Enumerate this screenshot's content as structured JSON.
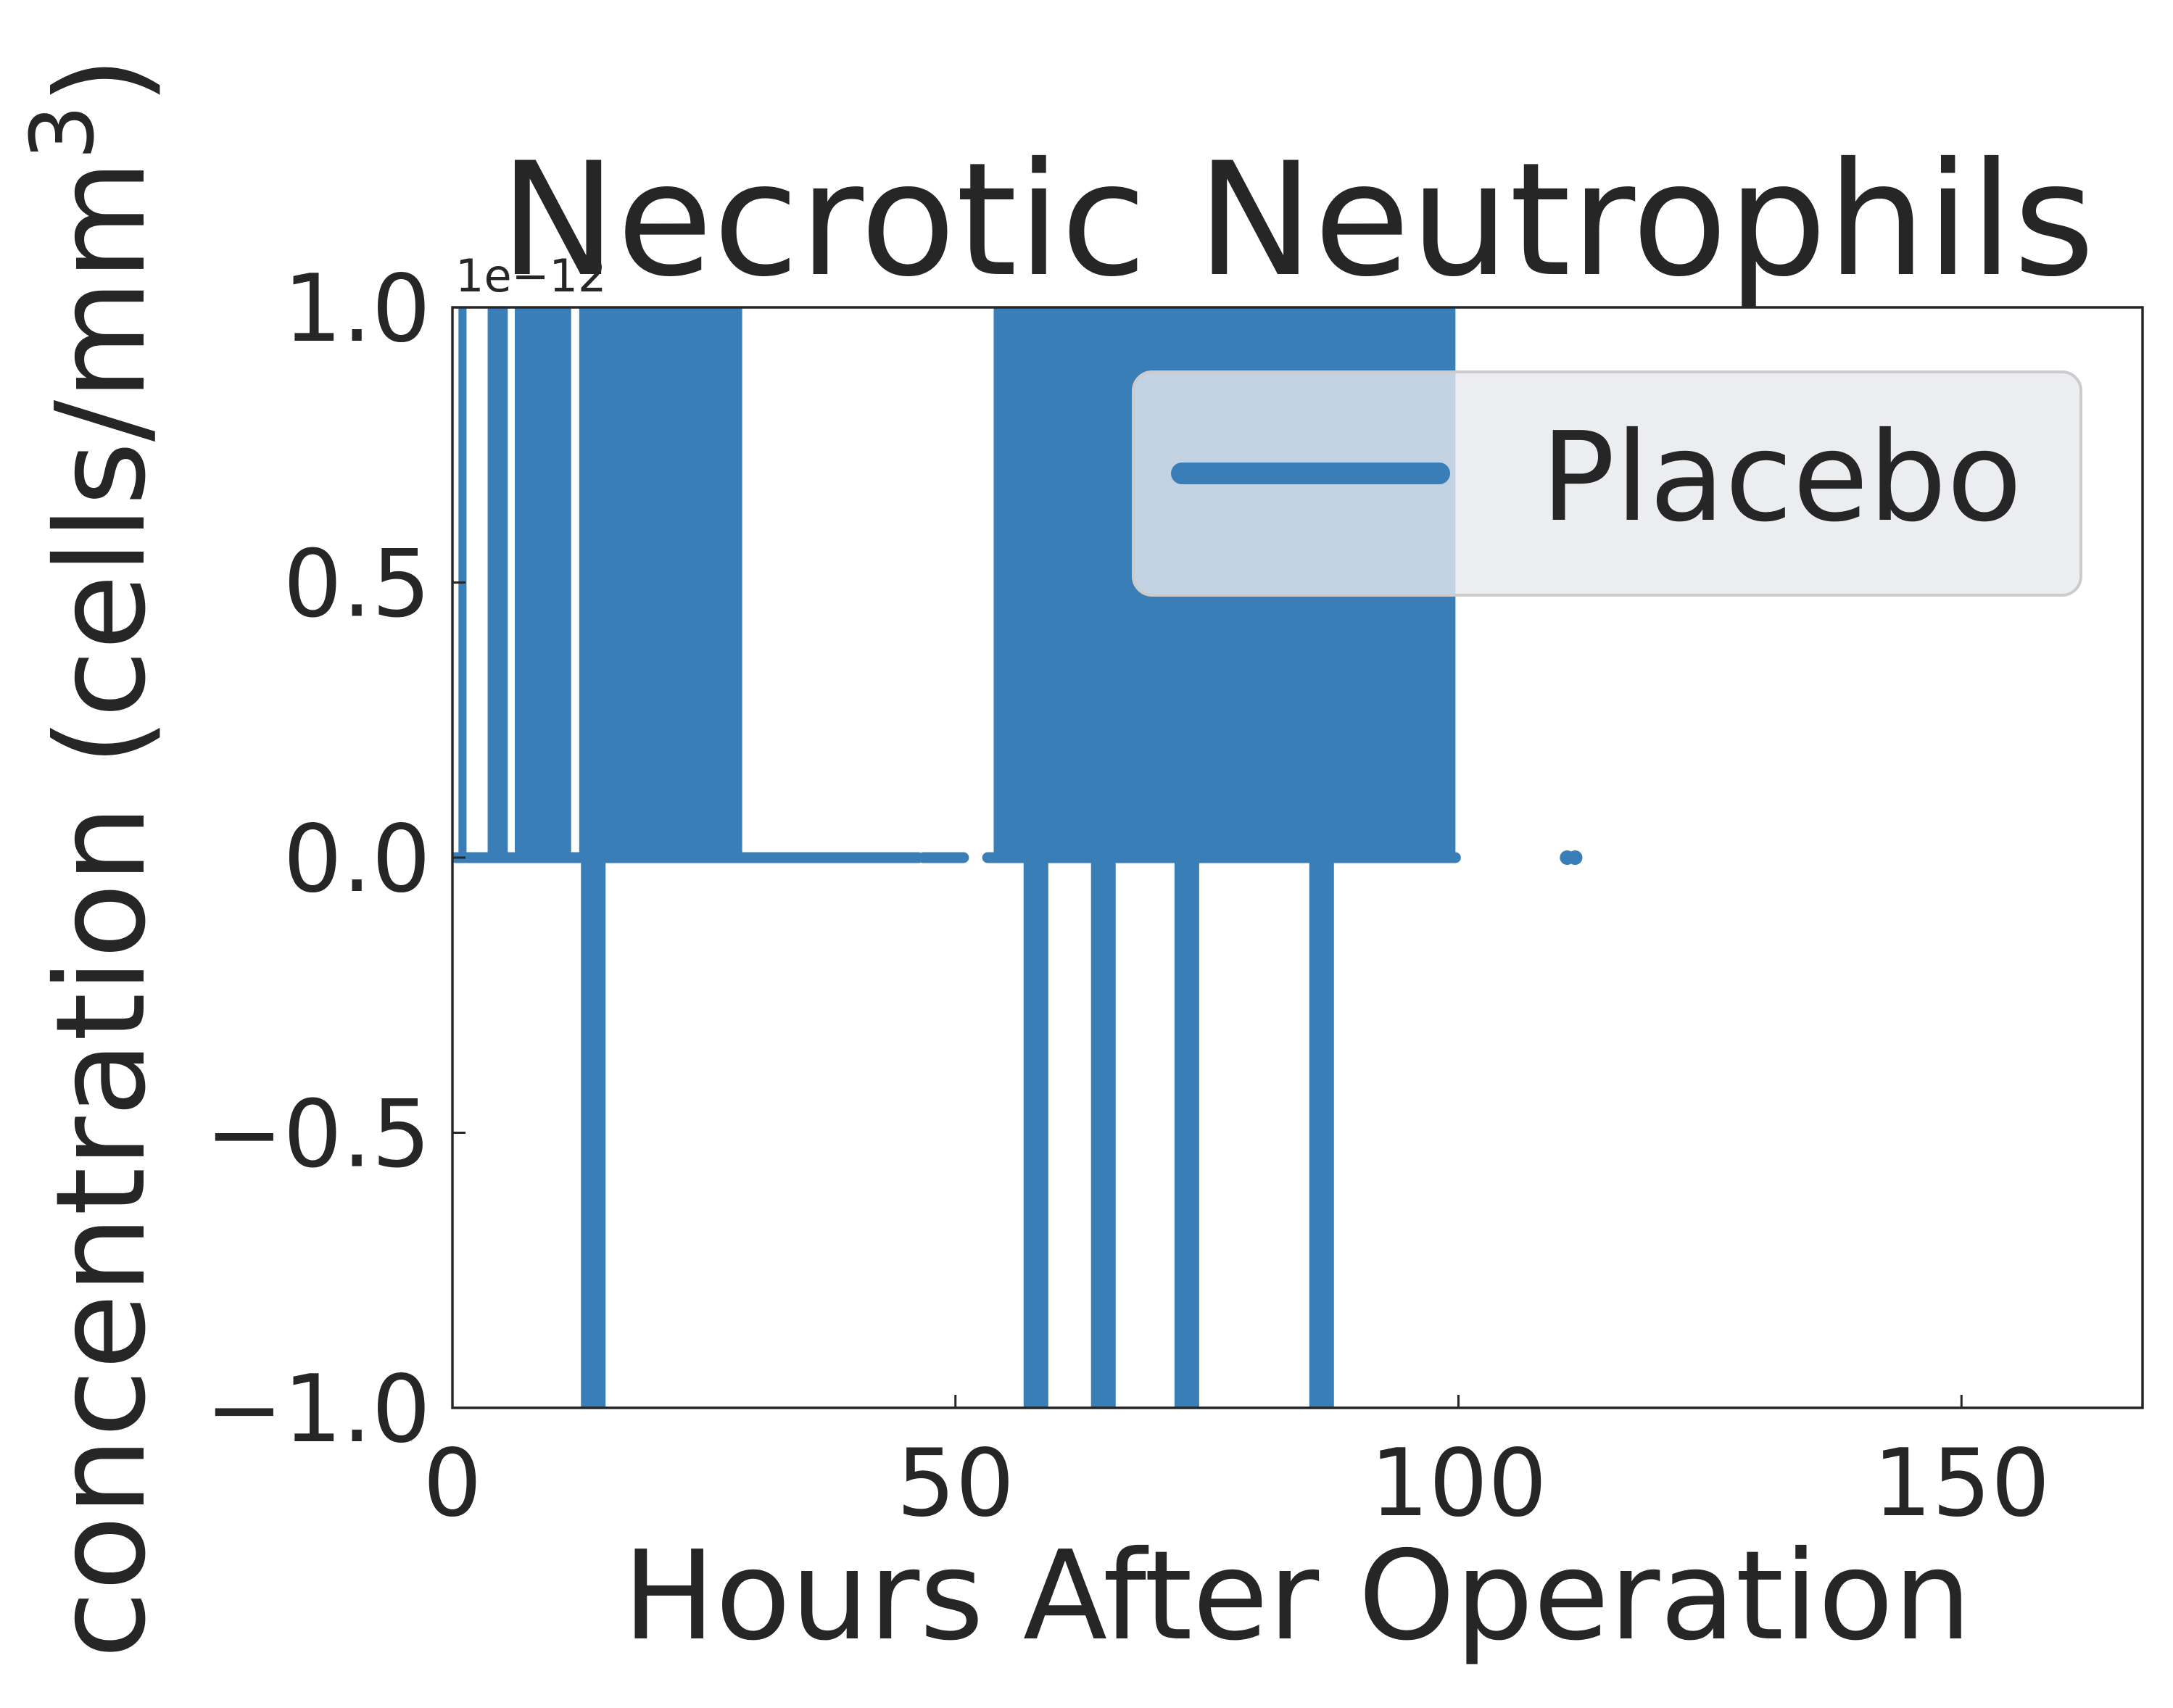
{
  "chart_data": {
    "type": "line",
    "title": "Necrotic Neutrophils",
    "xlabel": "Hours After Operation",
    "ylabel": "concentration (cells/mm",
    "ylabel_superscript": "3",
    "ylabel_suffix": ")",
    "y_offset_text": "1e−12",
    "xlim": [
      0,
      168
    ],
    "ylim": [
      -1.0,
      1.0
    ],
    "x_ticks": [
      {
        "value": 0,
        "label": "0"
      },
      {
        "value": 50,
        "label": "50"
      },
      {
        "value": 100,
        "label": "100"
      },
      {
        "value": 150,
        "label": "150"
      }
    ],
    "y_ticks": [
      {
        "value": -1.0,
        "label": "−1.0"
      },
      {
        "value": -0.5,
        "label": "−0.5"
      },
      {
        "value": 0.0,
        "label": "0.0"
      },
      {
        "value": 0.5,
        "label": "0.5"
      },
      {
        "value": 1.0,
        "label": "1.0"
      }
    ],
    "grid": false,
    "legend_position": "upper right",
    "series": [
      {
        "name": "Placebo",
        "color": "#3a7eb8",
        "dense_bands": [
          {
            "x_start": 0.6,
            "x_end": 1.4,
            "y_low": 0.0,
            "y_high": 1.0
          },
          {
            "x_start": 3.5,
            "x_end": 5.5,
            "y_low": 0.0,
            "y_high": 1.0
          },
          {
            "x_start": 6.2,
            "x_end": 11.8,
            "y_low": 0.0,
            "y_high": 1.0
          },
          {
            "x_start": 12.6,
            "x_end": 28.8,
            "y_low": 0.0,
            "y_high": 1.0
          },
          {
            "x_start": 53.8,
            "x_end": 99.7,
            "y_low": 0.0,
            "y_high": 1.0
          }
        ],
        "spikes": [
          {
            "x": 14.0,
            "y_low": -1.0,
            "y_high": 0.0
          },
          {
            "x": 58.0,
            "y_low": -1.0,
            "y_high": 0.0
          },
          {
            "x": 64.7,
            "y_low": -1.0,
            "y_high": 0.0
          },
          {
            "x": 73.0,
            "y_low": -1.0,
            "y_high": 0.0
          },
          {
            "x": 86.4,
            "y_low": -1.0,
            "y_high": 0.0
          }
        ],
        "baseline_segments": [
          {
            "x_start": 0.3,
            "x_end": 46.3,
            "y": 0.0
          },
          {
            "x_start": 46.8,
            "x_end": 50.8,
            "y": 0.0
          },
          {
            "x_start": 53.2,
            "x_end": 99.7,
            "y": 0.0
          }
        ],
        "points": [
          {
            "x": 110.8,
            "y": 0.0
          },
          {
            "x": 111.6,
            "y": 0.0
          }
        ]
      }
    ]
  }
}
